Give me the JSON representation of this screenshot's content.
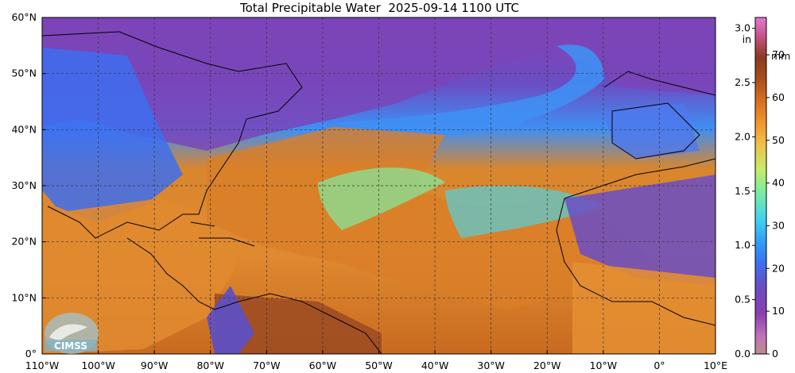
{
  "title": "Total Precipitable Water  2025-09-14 1100 UTC",
  "map": {
    "lon_range": [
      -110,
      10
    ],
    "lat_range": [
      0,
      60
    ],
    "lon_ticks": [
      {
        "value": -110,
        "label": "110°W"
      },
      {
        "value": -100,
        "label": "100°W"
      },
      {
        "value": -90,
        "label": "90°W"
      },
      {
        "value": -80,
        "label": "80°W"
      },
      {
        "value": -70,
        "label": "70°W"
      },
      {
        "value": -60,
        "label": "60°W"
      },
      {
        "value": -50,
        "label": "50°W"
      },
      {
        "value": -40,
        "label": "40°W"
      },
      {
        "value": -30,
        "label": "30°W"
      },
      {
        "value": -20,
        "label": "20°W"
      },
      {
        "value": -10,
        "label": "10°W"
      },
      {
        "value": 0,
        "label": "0°"
      },
      {
        "value": 10,
        "label": "10°E"
      }
    ],
    "lat_ticks": [
      {
        "value": 0,
        "label": "0°"
      },
      {
        "value": 10,
        "label": "10°N"
      },
      {
        "value": 20,
        "label": "20°N"
      },
      {
        "value": 30,
        "label": "30°N"
      },
      {
        "value": 40,
        "label": "40°N"
      },
      {
        "value": 50,
        "label": "50°N"
      },
      {
        "value": 60,
        "label": "60°N"
      }
    ],
    "gridlines": "dashed",
    "logo_text": "CIMSS"
  },
  "colorbar": {
    "left_unit": "in",
    "left_range": [
      0.0,
      3.1
    ],
    "left_ticks": [
      {
        "value": 0.0,
        "label": "0.0"
      },
      {
        "value": 0.5,
        "label": "0.5"
      },
      {
        "value": 1.0,
        "label": "1.0"
      },
      {
        "value": 1.5,
        "label": "1.5"
      },
      {
        "value": 2.0,
        "label": "2.0"
      },
      {
        "value": 2.5,
        "label": "2.5"
      },
      {
        "value": 3.0,
        "label": "3.0"
      }
    ],
    "right_unit": "mm",
    "right_range": [
      0,
      78.74
    ],
    "right_ticks": [
      {
        "value": 0,
        "label": "0"
      },
      {
        "value": 10,
        "label": "10"
      },
      {
        "value": 20,
        "label": "20"
      },
      {
        "value": 30,
        "label": "30"
      },
      {
        "value": 40,
        "label": "40"
      },
      {
        "value": 50,
        "label": "50"
      },
      {
        "value": 60,
        "label": "60"
      },
      {
        "value": 70,
        "label": "70"
      }
    ],
    "colors": [
      "#b98d8d",
      "#c474b8",
      "#8a3fb0",
      "#6a4ec4",
      "#3d6ff0",
      "#2f9cf6",
      "#3fd3ee",
      "#7ceca2",
      "#c9ea6a",
      "#f0c24a",
      "#f29a2e",
      "#d96f1f",
      "#a84d1e",
      "#8a3a1c",
      "#c45080",
      "#e07ad0"
    ]
  }
}
